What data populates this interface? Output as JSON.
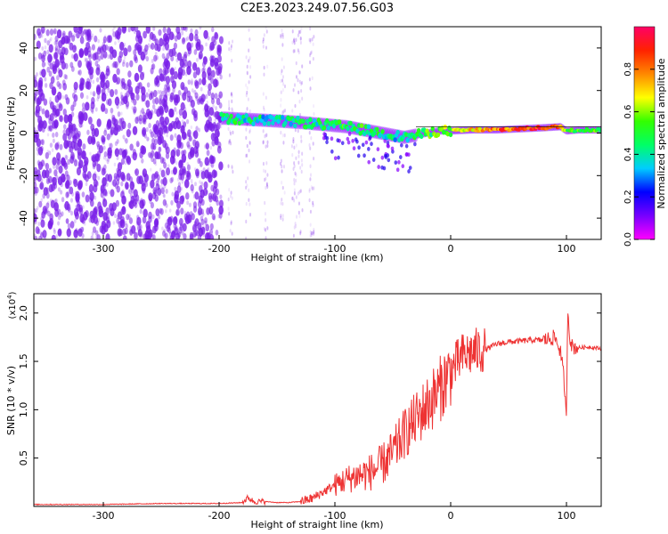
{
  "title": "C2E3.2023.249.07.56.G03",
  "colors": {
    "snr_line": "#ee3333",
    "spec_points": "#7a1fe8",
    "colorbar_stops": [
      "#ff00ff",
      "#7700ff",
      "#0000ff",
      "#00ccff",
      "#00ff66",
      "#33ff00",
      "#ffff00",
      "#ff8800",
      "#ff2200",
      "#ff0066"
    ]
  },
  "chart_data": [
    {
      "type": "heatmap",
      "title": "C2E3.2023.249.07.56.G03",
      "xlabel": "Height of straight line (km)",
      "ylabel": "Frequency (Hz)",
      "xlim": [
        -360,
        130
      ],
      "ylim": [
        -50,
        50
      ],
      "xticks": [
        -300,
        -200,
        -100,
        0,
        100
      ],
      "yticks": [
        -40,
        -20,
        0,
        20,
        40
      ],
      "colorbar": {
        "label": "Normalized spectral amplitude",
        "range": [
          0,
          1
        ],
        "ticks": [
          0.0,
          0.2,
          0.4,
          0.6,
          0.8
        ]
      },
      "ridge": {
        "x": [
          -195,
          -160,
          -130,
          -110,
          -90,
          -70,
          -50,
          -40,
          -30,
          -20,
          -10,
          0,
          20,
          40,
          60,
          80,
          95,
          100,
          110,
          130
        ],
        "freq": [
          7,
          6,
          5,
          4,
          3,
          1,
          -1,
          -2,
          -1,
          0,
          1,
          1,
          1.5,
          1.5,
          2,
          2.5,
          3,
          1,
          1.5,
          1.5
        ],
        "amplitude": [
          0.45,
          0.4,
          0.4,
          0.45,
          0.5,
          0.45,
          0.4,
          0.4,
          0.45,
          0.5,
          0.55,
          0.6,
          0.7,
          0.8,
          0.85,
          0.9,
          0.8,
          0.6,
          0.55,
          0.5
        ]
      }
    },
    {
      "type": "line",
      "xlabel": "Height of straight line (km)",
      "ylabel": "SNR (10 * v/v)",
      "y_scale_label": "(x10",
      "y_scale_exp": "4",
      "y_scale_suffix": ")",
      "xlim": [
        -360,
        130
      ],
      "ylim": [
        0,
        2.2
      ],
      "xticks": [
        -300,
        -200,
        -100,
        0,
        100
      ],
      "yticks": [
        0.5,
        1.0,
        1.5,
        2.0
      ],
      "series": [
        {
          "x": [
            -360,
            -300,
            -250,
            -200,
            -180,
            -175,
            -170,
            -160,
            -150,
            -140,
            -130,
            -120,
            -110,
            -100,
            -90,
            -80,
            -70,
            -60,
            -50,
            -40,
            -30,
            -20,
            -10,
            0,
            10,
            20,
            30,
            40,
            50,
            60,
            70,
            80,
            90,
            95,
            98,
            100,
            101,
            103,
            105,
            110,
            120,
            130
          ],
          "y": [
            0.02,
            0.02,
            0.03,
            0.03,
            0.04,
            0.09,
            0.05,
            0.05,
            0.04,
            0.04,
            0.05,
            0.08,
            0.15,
            0.22,
            0.28,
            0.32,
            0.35,
            0.42,
            0.55,
            0.75,
            0.9,
            1.05,
            1.2,
            1.4,
            1.55,
            1.6,
            1.62,
            1.68,
            1.7,
            1.71,
            1.72,
            1.72,
            1.75,
            1.6,
            1.3,
            0.85,
            2.05,
            1.75,
            1.65,
            1.64,
            1.65,
            1.63
          ]
        }
      ]
    }
  ]
}
